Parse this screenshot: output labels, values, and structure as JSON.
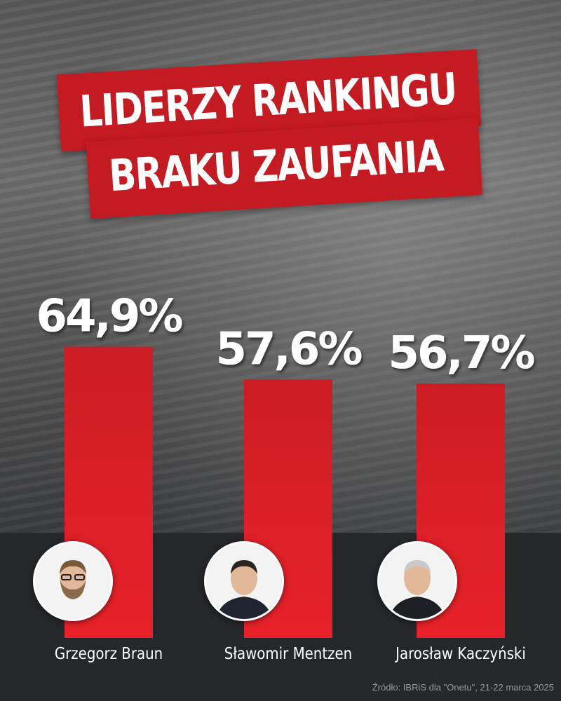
{
  "title": {
    "line1": "LIDERZY RANKINGU",
    "line2": "BRAKU ZAUFANIA"
  },
  "chart_data": {
    "type": "bar",
    "categories": [
      "Grzegorz Braun",
      "Sławomir Mentzen",
      "Jarosław Kaczyński"
    ],
    "values": [
      64.9,
      57.6,
      56.7
    ],
    "value_labels": [
      "64,9%",
      "57,6%",
      "56,7%"
    ],
    "title": "LIDERZY RANKINGU BRAKU ZAUFANIA",
    "ylim": [
      0,
      100
    ],
    "grid": false,
    "bar_color": "#cc1c24"
  },
  "avatars": [
    "person-braun-icon",
    "person-mentzen-icon",
    "person-kaczynski-icon"
  ],
  "source": "Źródło: IBRiS dla \"Onetu\", 21-22 marca 2025",
  "colors": {
    "accent": "#c41a22",
    "background": "#2a2b2d",
    "text": "#ffffff"
  }
}
